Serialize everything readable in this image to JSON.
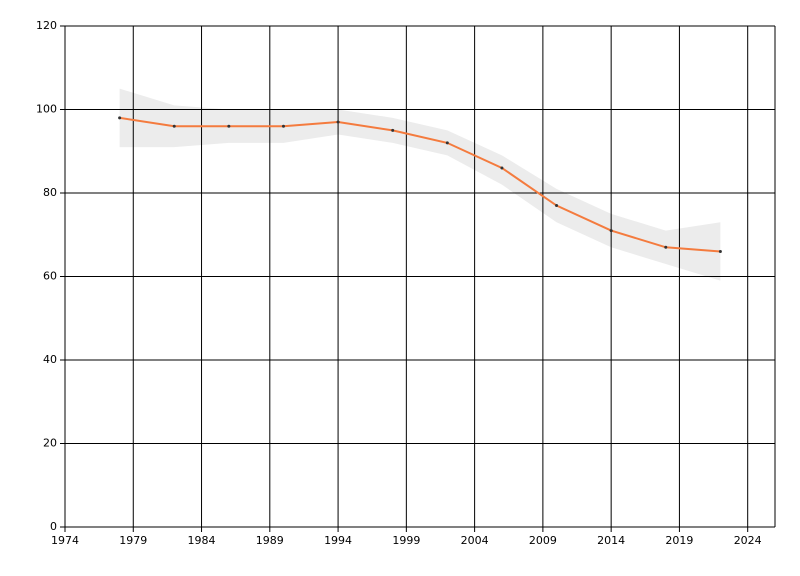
{
  "chart_data": {
    "type": "line",
    "x": [
      1978,
      1982,
      1986,
      1990,
      1994,
      1998,
      2002,
      2006,
      2010,
      2014,
      2018,
      2022
    ],
    "series": [
      {
        "color": "#f47b3e",
        "values": [
          98,
          96,
          96,
          96,
          97,
          95,
          92,
          86,
          77,
          71,
          67,
          66
        ]
      }
    ],
    "band": {
      "color": "#ececec",
      "upper": [
        105,
        101,
        100,
        100,
        100,
        98,
        95,
        89,
        81,
        75,
        71,
        73
      ],
      "lower": [
        91,
        91,
        92,
        92,
        94,
        92,
        89,
        82,
        73,
        67,
        63,
        59
      ]
    },
    "xlim": [
      1974,
      2026
    ],
    "xticks": [
      1974,
      1979,
      1984,
      1989,
      1994,
      1999,
      2004,
      2009,
      2014,
      2019,
      2024
    ],
    "ylim": [
      0,
      120
    ],
    "yticks": [
      0,
      20,
      40,
      60,
      80,
      100,
      120
    ],
    "grid": true
  }
}
